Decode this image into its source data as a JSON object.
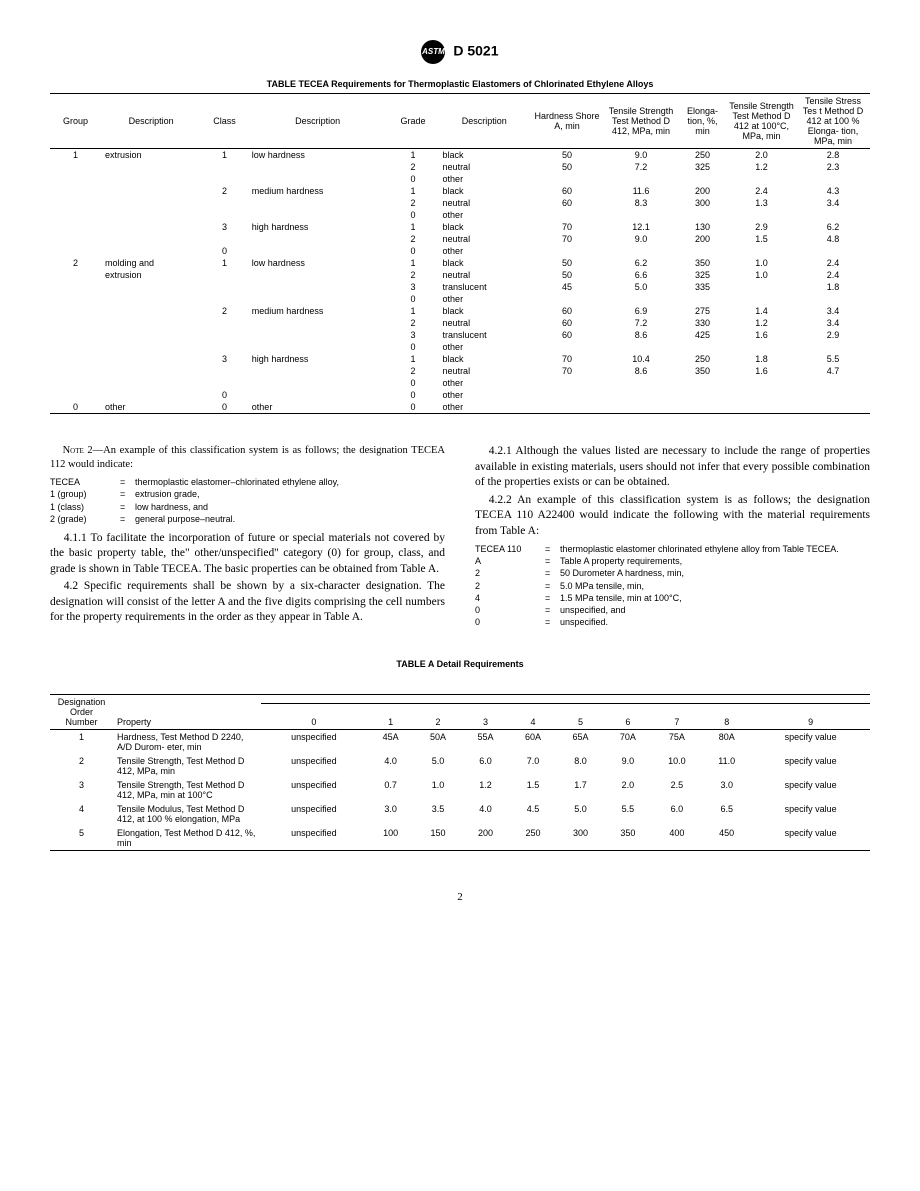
{
  "header": {
    "logo": "ASTM",
    "code": "D 5021"
  },
  "table_tecea": {
    "title": "TABLE TECEA   Requirements for Thermoplastic Elastomers of Chlorinated Ethylene Alloys",
    "headers": {
      "group": "Group",
      "desc1": "Description",
      "class": "Class",
      "desc2": "Description",
      "grade": "Grade",
      "desc3": "Description",
      "hardness": "Hardness Shore A, min",
      "tensile": "Tensile Strength Test Method D 412, MPa, min",
      "elong": "Elonga-\ntion, %, min",
      "tensile100": "Tensile Strength Test Method D 412 at 100°C, MPa, min",
      "stress100": "Tensile Stress Tes t Method D 412 at 100 % Elonga-\ntion, MPa, min"
    },
    "rows": [
      {
        "g": "1",
        "d1": "extrusion",
        "c": "1",
        "d2": "low hardness",
        "gr": "1",
        "d3": "black",
        "h": "50",
        "t": "9.0",
        "e": "250",
        "t100": "2.0",
        "s": "2.8"
      },
      {
        "g": "",
        "d1": "",
        "c": "",
        "d2": "",
        "gr": "2",
        "d3": "neutral",
        "h": "50",
        "t": "7.2",
        "e": "325",
        "t100": "1.2",
        "s": "2.3"
      },
      {
        "g": "",
        "d1": "",
        "c": "",
        "d2": "",
        "gr": "0",
        "d3": "other",
        "h": "",
        "t": "",
        "e": "",
        "t100": "",
        "s": ""
      },
      {
        "g": "",
        "d1": "",
        "c": "2",
        "d2": "medium hardness",
        "gr": "1",
        "d3": "black",
        "h": "60",
        "t": "11.6",
        "e": "200",
        "t100": "2.4",
        "s": "4.3"
      },
      {
        "g": "",
        "d1": "",
        "c": "",
        "d2": "",
        "gr": "2",
        "d3": "neutral",
        "h": "60",
        "t": "8.3",
        "e": "300",
        "t100": "1.3",
        "s": "3.4"
      },
      {
        "g": "",
        "d1": "",
        "c": "",
        "d2": "",
        "gr": "0",
        "d3": "other",
        "h": "",
        "t": "",
        "e": "",
        "t100": "",
        "s": ""
      },
      {
        "g": "",
        "d1": "",
        "c": "3",
        "d2": "high hardness",
        "gr": "1",
        "d3": "black",
        "h": "70",
        "t": "12.1",
        "e": "130",
        "t100": "2.9",
        "s": "6.2"
      },
      {
        "g": "",
        "d1": "",
        "c": "",
        "d2": "",
        "gr": "2",
        "d3": "neutral",
        "h": "70",
        "t": "9.0",
        "e": "200",
        "t100": "1.5",
        "s": "4.8"
      },
      {
        "g": "",
        "d1": "",
        "c": "0",
        "d2": "",
        "gr": "0",
        "d3": "other",
        "h": "",
        "t": "",
        "e": "",
        "t100": "",
        "s": ""
      },
      {
        "g": "2",
        "d1": "molding and",
        "c": "1",
        "d2": "low hardness",
        "gr": "1",
        "d3": "black",
        "h": "50",
        "t": "6.2",
        "e": "350",
        "t100": "1.0",
        "s": "2.4"
      },
      {
        "g": "",
        "d1": "extrusion",
        "c": "",
        "d2": "",
        "gr": "2",
        "d3": "neutral",
        "h": "50",
        "t": "6.6",
        "e": "325",
        "t100": "1.0",
        "s": "2.4"
      },
      {
        "g": "",
        "d1": "",
        "c": "",
        "d2": "",
        "gr": "3",
        "d3": "translucent",
        "h": "45",
        "t": "5.0",
        "e": "335",
        "t100": "",
        "s": "1.8"
      },
      {
        "g": "",
        "d1": "",
        "c": "",
        "d2": "",
        "gr": "0",
        "d3": "other",
        "h": "",
        "t": "",
        "e": "",
        "t100": "",
        "s": ""
      },
      {
        "g": "",
        "d1": "",
        "c": "2",
        "d2": "medium hardness",
        "gr": "1",
        "d3": "black",
        "h": "60",
        "t": "6.9",
        "e": "275",
        "t100": "1.4",
        "s": "3.4"
      },
      {
        "g": "",
        "d1": "",
        "c": "",
        "d2": "",
        "gr": "2",
        "d3": "neutral",
        "h": "60",
        "t": "7.2",
        "e": "330",
        "t100": "1.2",
        "s": "3.4"
      },
      {
        "g": "",
        "d1": "",
        "c": "",
        "d2": "",
        "gr": "3",
        "d3": "translucent",
        "h": "60",
        "t": "8.6",
        "e": "425",
        "t100": "1.6",
        "s": "2.9"
      },
      {
        "g": "",
        "d1": "",
        "c": "",
        "d2": "",
        "gr": "0",
        "d3": "other",
        "h": "",
        "t": "",
        "e": "",
        "t100": "",
        "s": ""
      },
      {
        "g": "",
        "d1": "",
        "c": "3",
        "d2": "high hardness",
        "gr": "1",
        "d3": "black",
        "h": "70",
        "t": "10.4",
        "e": "250",
        "t100": "1.8",
        "s": "5.5"
      },
      {
        "g": "",
        "d1": "",
        "c": "",
        "d2": "",
        "gr": "2",
        "d3": "neutral",
        "h": "70",
        "t": "8.6",
        "e": "350",
        "t100": "1.6",
        "s": "4.7"
      },
      {
        "g": "",
        "d1": "",
        "c": "",
        "d2": "",
        "gr": "0",
        "d3": "other",
        "h": "",
        "t": "",
        "e": "",
        "t100": "",
        "s": ""
      },
      {
        "g": "",
        "d1": "",
        "c": "0",
        "d2": "",
        "gr": "0",
        "d3": "other",
        "h": "",
        "t": "",
        "e": "",
        "t100": "",
        "s": ""
      },
      {
        "g": "0",
        "d1": "other",
        "c": "0",
        "d2": "other",
        "gr": "0",
        "d3": "other",
        "h": "",
        "t": "",
        "e": "",
        "t100": "",
        "s": ""
      }
    ]
  },
  "note2": {
    "prefix": "Note 2—",
    "text": "An example of this classification system is as follows; the designation TECEA 112 would indicate:"
  },
  "defs1": [
    {
      "k": "TECEA",
      "v": "thermoplastic elastomer–chlorinated ethylene alloy,"
    },
    {
      "k": "1 (group)",
      "v": "extrusion grade,"
    },
    {
      "k": "1 (class)",
      "v": "low hardness, and"
    },
    {
      "k": "2 (grade)",
      "v": "general purpose–neutral."
    }
  ],
  "p411": "4.1.1 To facilitate the incorporation of future or special materials not covered by the basic property table, the\" other/unspecified'' category (0) for group, class, and grade is shown in Table TECEA. The basic properties can be obtained from Table A.",
  "p42": "4.2 Specific requirements shall be shown by a six-character designation. The designation will consist of the letter A and the five digits comprising the cell numbers for the property requirements in the order as they appear in Table A.",
  "p421": "4.2.1 Although the values listed are necessary to include the range of properties available in existing materials, users should not infer that every possible combination of the properties exists or can be obtained.",
  "p422": "4.2.2 An example of this classification system is as follows; the designation TECEA 110 A22400 would indicate the following with the material requirements from Table A:",
  "defs2": [
    {
      "k": "TECEA 110",
      "v": "thermoplastic elastomer chlorinated ethylene alloy from Table TECEA."
    },
    {
      "k": "A",
      "v": "Table A property requirements,"
    },
    {
      "k": "2",
      "v": "50 Durometer A hardness, min,"
    },
    {
      "k": "2",
      "v": "5.0 MPa tensile, min,"
    },
    {
      "k": "4",
      "v": "1.5 MPa tensile, min at 100°C,"
    },
    {
      "k": "0",
      "v": "unspecified, and"
    },
    {
      "k": "0",
      "v": "unspecified."
    }
  ],
  "table_a": {
    "title": "TABLE A   Detail Requirements",
    "col_headers": [
      "0",
      "1",
      "2",
      "3",
      "4",
      "5",
      "6",
      "7",
      "8",
      "9"
    ],
    "h1": "Designation Order Number",
    "h2": "Property",
    "rows": [
      {
        "n": "1",
        "p": "Hardness, Test Method D 2240, A/D Durom-\neter, min",
        "v": [
          "unspecified",
          "45A",
          "50A",
          "55A",
          "60A",
          "65A",
          "70A",
          "75A",
          "80A",
          "specify value"
        ]
      },
      {
        "n": "2",
        "p": "Tensile Strength, Test Method D 412, MPa, min",
        "v": [
          "unspecified",
          "4.0",
          "5.0",
          "6.0",
          "7.0",
          "8.0",
          "9.0",
          "10.0",
          "11.0",
          "specify value"
        ]
      },
      {
        "n": "3",
        "p": "Tensile Strength, Test Method D 412, MPa, min at 100°C",
        "v": [
          "unspecified",
          "0.7",
          "1.0",
          "1.2",
          "1.5",
          "1.7",
          "2.0",
          "2.5",
          "3.0",
          "specify value"
        ]
      },
      {
        "n": "4",
        "p": "Tensile Modulus, Test Method D 412, at 100 % elongation, MPa",
        "v": [
          "unspecified",
          "3.0",
          "3.5",
          "4.0",
          "4.5",
          "5.0",
          "5.5",
          "6.0",
          "6.5",
          "specify value"
        ]
      },
      {
        "n": "5",
        "p": "Elongation, Test Method D 412, %, min",
        "v": [
          "unspecified",
          "100",
          "150",
          "200",
          "250",
          "300",
          "350",
          "400",
          "450",
          "specify value"
        ]
      }
    ]
  },
  "page_num": "2"
}
